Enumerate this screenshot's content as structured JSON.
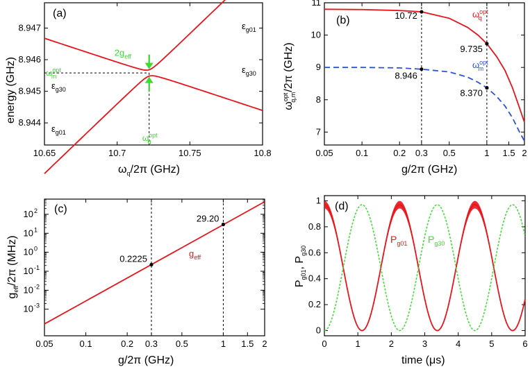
{
  "colors": {
    "red": "#e8141c",
    "green": "#3ddc2f",
    "blue": "#2d4fe0",
    "black": "#000000"
  },
  "chart_data": [
    {
      "id": "a",
      "type": "line",
      "panel_label": "(a)",
      "xlabel": "ω_q/2π (GHz)",
      "ylabel": "energy (GHz)",
      "xlim": [
        10.65,
        10.8
      ],
      "ylim": [
        8.9433,
        8.9478
      ],
      "xticks": [
        10.65,
        10.7,
        10.75,
        10.8
      ],
      "xtick_labels": [
        "10.65",
        "10.7",
        "10.75",
        "10.8"
      ],
      "yticks": [
        8.944,
        8.945,
        8.946,
        8.947
      ],
      "ytick_labels": [
        "8.944",
        "8.945",
        "8.946",
        "8.947"
      ],
      "crossing": {
        "x": 10.722,
        "y": 8.94558,
        "gap": 0.0002,
        "slope": 0.0297
      },
      "branch_labels": [
        "ε_g01",
        "ε_g30",
        "ε_g30",
        "ε_g01"
      ],
      "gap_label": "2g_eff",
      "x_marker_label": "ω_q^opt",
      "y_marker_label": "ω_m^opt"
    },
    {
      "id": "b",
      "type": "line",
      "panel_label": "(b)",
      "xscale": "log",
      "xlabel": "g/2π (GHz)",
      "ylabel": "ω_q,m^opt/2π (GHz)",
      "xlim": [
        0.05,
        2
      ],
      "ylim": [
        6.6,
        11
      ],
      "xticks": [
        0.05,
        0.1,
        0.2,
        0.3,
        0.5,
        1,
        1.5,
        2
      ],
      "xtick_labels": [
        "0.05",
        "0.1",
        "0.2",
        "0.3",
        "0.5",
        "1",
        "1.5",
        "2"
      ],
      "yticks": [
        7,
        8,
        9,
        10,
        11
      ],
      "ytick_labels": [
        "7",
        "8",
        "9",
        "10",
        "11"
      ],
      "series": [
        {
          "name": "ω_q^opt",
          "style": "solid",
          "color": "red",
          "x": [
            0.05,
            0.1,
            0.2,
            0.3,
            0.5,
            0.7,
            0.85,
            1.0,
            1.2,
            1.4,
            1.6,
            1.8,
            2.0
          ],
          "y": [
            10.8,
            10.79,
            10.76,
            10.72,
            10.52,
            10.24,
            10.0,
            9.735,
            9.33,
            8.9,
            8.38,
            7.82,
            7.3
          ]
        },
        {
          "name": "ω_m^opt",
          "style": "dashed",
          "color": "blue",
          "x": [
            0.05,
            0.1,
            0.2,
            0.3,
            0.5,
            0.7,
            0.85,
            1.0,
            1.2,
            1.4,
            1.6,
            1.8,
            2.0
          ],
          "y": [
            9.0,
            9.0,
            8.985,
            8.946,
            8.86,
            8.7,
            8.54,
            8.37,
            8.1,
            7.8,
            7.45,
            7.05,
            6.72
          ]
        }
      ],
      "vlines": [
        0.3,
        1.0
      ],
      "points": [
        {
          "x": 0.3,
          "y": 10.72,
          "label": "10.72"
        },
        {
          "x": 1.0,
          "y": 9.735,
          "label": "9.735"
        },
        {
          "x": 0.3,
          "y": 8.946,
          "label": "8.946"
        },
        {
          "x": 1.0,
          "y": 8.37,
          "label": "8.370"
        }
      ]
    },
    {
      "id": "c",
      "type": "line",
      "panel_label": "(c)",
      "xscale": "log",
      "yscale": "log",
      "xlabel": "g/2π (GHz)",
      "ylabel": "g_eff/2π (MHz)",
      "xlim": [
        0.05,
        2
      ],
      "ylim_exp": [
        -4.4,
        2.8
      ],
      "xticks": [
        0.05,
        0.1,
        0.2,
        0.3,
        0.5,
        1,
        1.5,
        2
      ],
      "xtick_labels": [
        "0.05",
        "0.1",
        "0.2",
        "0.3",
        "0.5",
        "1",
        "1.5",
        "2"
      ],
      "ytick_exps": [
        -3,
        -2,
        -1,
        0,
        1,
        2
      ],
      "ytick_labels": [
        "10",
        "10",
        "10",
        "10",
        "10",
        "10"
      ],
      "ytick_sups": [
        "-3",
        "-2",
        "-1",
        "0",
        "1",
        "2"
      ],
      "series": [
        {
          "name": "g_eff",
          "color": "red",
          "x": [
            0.05,
            2.0
          ],
          "y": [
            0.000167,
            460
          ]
        }
      ],
      "vlines": [
        0.3,
        1.0
      ],
      "points": [
        {
          "x": 0.3,
          "y": 0.2225,
          "label": "0.2225"
        },
        {
          "x": 1.0,
          "y": 29.2,
          "label": "29.20"
        }
      ],
      "series_label": "g_eff"
    },
    {
      "id": "d",
      "type": "line",
      "panel_label": "(d)",
      "xlabel": "time (μs)",
      "ylabel": "P_g01, P_g30",
      "xlim": [
        0,
        6
      ],
      "ylim": [
        -0.04,
        1.04
      ],
      "xticks": [
        0,
        1,
        2,
        3,
        4,
        5,
        6
      ],
      "xtick_labels": [
        "0",
        "1",
        "2",
        "3",
        "4",
        "5",
        "6"
      ],
      "yticks": [
        0,
        0.2,
        0.4,
        0.6,
        0.8,
        1
      ],
      "ytick_labels": [
        "0",
        "0.2",
        "0.4",
        "0.6",
        "0.8",
        "1"
      ],
      "period_us": 2.25,
      "amplitude": 0.97,
      "series": [
        {
          "name": "P_g01",
          "color": "red",
          "style": "solid",
          "phase": "cos"
        },
        {
          "name": "P_g30",
          "color": "green",
          "style": "dashed",
          "phase": "sin"
        }
      ]
    }
  ]
}
